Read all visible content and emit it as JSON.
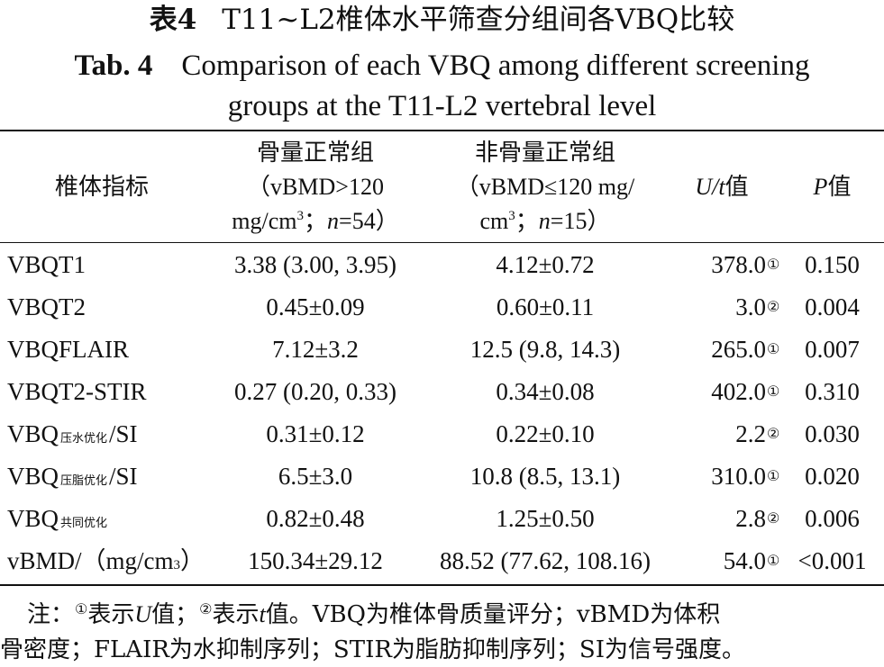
{
  "title": {
    "cn_label": "表4",
    "cn_text": "T11~L2椎体水平筛查分组间各VBQ比较",
    "en_label": "Tab. 4",
    "en_line1": "Comparison of each VBQ among different screening",
    "en_line2": "groups at the T11-L2 vertebral level"
  },
  "chart_data": {
    "type": "table",
    "columns": [
      {
        "line1": "椎体指标",
        "line2": "",
        "line3": ""
      },
      {
        "line1": "骨量正常组",
        "line2": "（vBMD>120",
        "line3a": "mg/cm",
        "line3sup": "3",
        "line3b": "；",
        "line3n": "n",
        "line3c": "=54）"
      },
      {
        "line1": "非骨量正常组",
        "line2": "（vBMD≤120 mg/",
        "line3a": "cm",
        "line3sup": "3",
        "line3b": "；",
        "line3n": "n",
        "line3c": "=15）"
      },
      {
        "italic": "U/t",
        "suffix": "值"
      },
      {
        "italic": "P",
        "suffix": "值"
      }
    ],
    "rows": [
      {
        "name_main": "VBQT1",
        "name_sub": "",
        "name_tail": "",
        "normal": "3.38 (3.00, 3.95)",
        "abnormal": "4.12±0.72",
        "stat": "378.0",
        "marker": "①",
        "p": "0.150"
      },
      {
        "name_main": "VBQT2",
        "name_sub": "",
        "name_tail": "",
        "normal": "0.45±0.09",
        "abnormal": "0.60±0.11",
        "stat": "3.0",
        "marker": "②",
        "p": "0.004"
      },
      {
        "name_main": "VBQFLAIR",
        "name_sub": "",
        "name_tail": "",
        "normal": "7.12±3.2",
        "abnormal": "12.5 (9.8, 14.3)",
        "stat": "265.0",
        "marker": "①",
        "p": "0.007"
      },
      {
        "name_main": "VBQT2-STIR",
        "name_sub": "",
        "name_tail": "",
        "normal": "0.27 (0.20, 0.33)",
        "abnormal": "0.34±0.08",
        "stat": "402.0",
        "marker": "①",
        "p": "0.310"
      },
      {
        "name_main": "VBQ",
        "name_sub": "压水优化",
        "name_tail": "/SI",
        "normal": "0.31±0.12",
        "abnormal": "0.22±0.10",
        "stat": "2.2",
        "marker": "②",
        "p": "0.030"
      },
      {
        "name_main": "VBQ",
        "name_sub": "压脂优化",
        "name_tail": "/SI",
        "normal": "6.5±3.0",
        "abnormal": "10.8 (8.5, 13.1)",
        "stat": "310.0",
        "marker": "①",
        "p": "0.020"
      },
      {
        "name_main": "VBQ",
        "name_sub": "共同优化",
        "name_tail": "",
        "normal": "0.82±0.48",
        "abnormal": "1.25±0.50",
        "stat": "2.8",
        "marker": "②",
        "p": "0.006"
      },
      {
        "name_main": "vBMD/（mg/cm",
        "name_sub": "",
        "name_tail": "）",
        "name_sup": "3",
        "normal": "150.34±29.12",
        "abnormal": "88.52 (77.62, 108.16)",
        "stat": "54.0",
        "marker": "①",
        "p": "<0.001"
      }
    ]
  },
  "note": {
    "prefix": "注：",
    "m1": "①",
    "t1": "表示",
    "u": "U",
    "t2": "值；",
    "m2": "②",
    "t3": "表示",
    "t": "t",
    "t4": "值。VBQ为椎体骨质量评分；vBMD为体积",
    "line2": "骨密度；FLAIR为水抑制序列；STIR为脂肪抑制序列；SI为信号强度。"
  }
}
